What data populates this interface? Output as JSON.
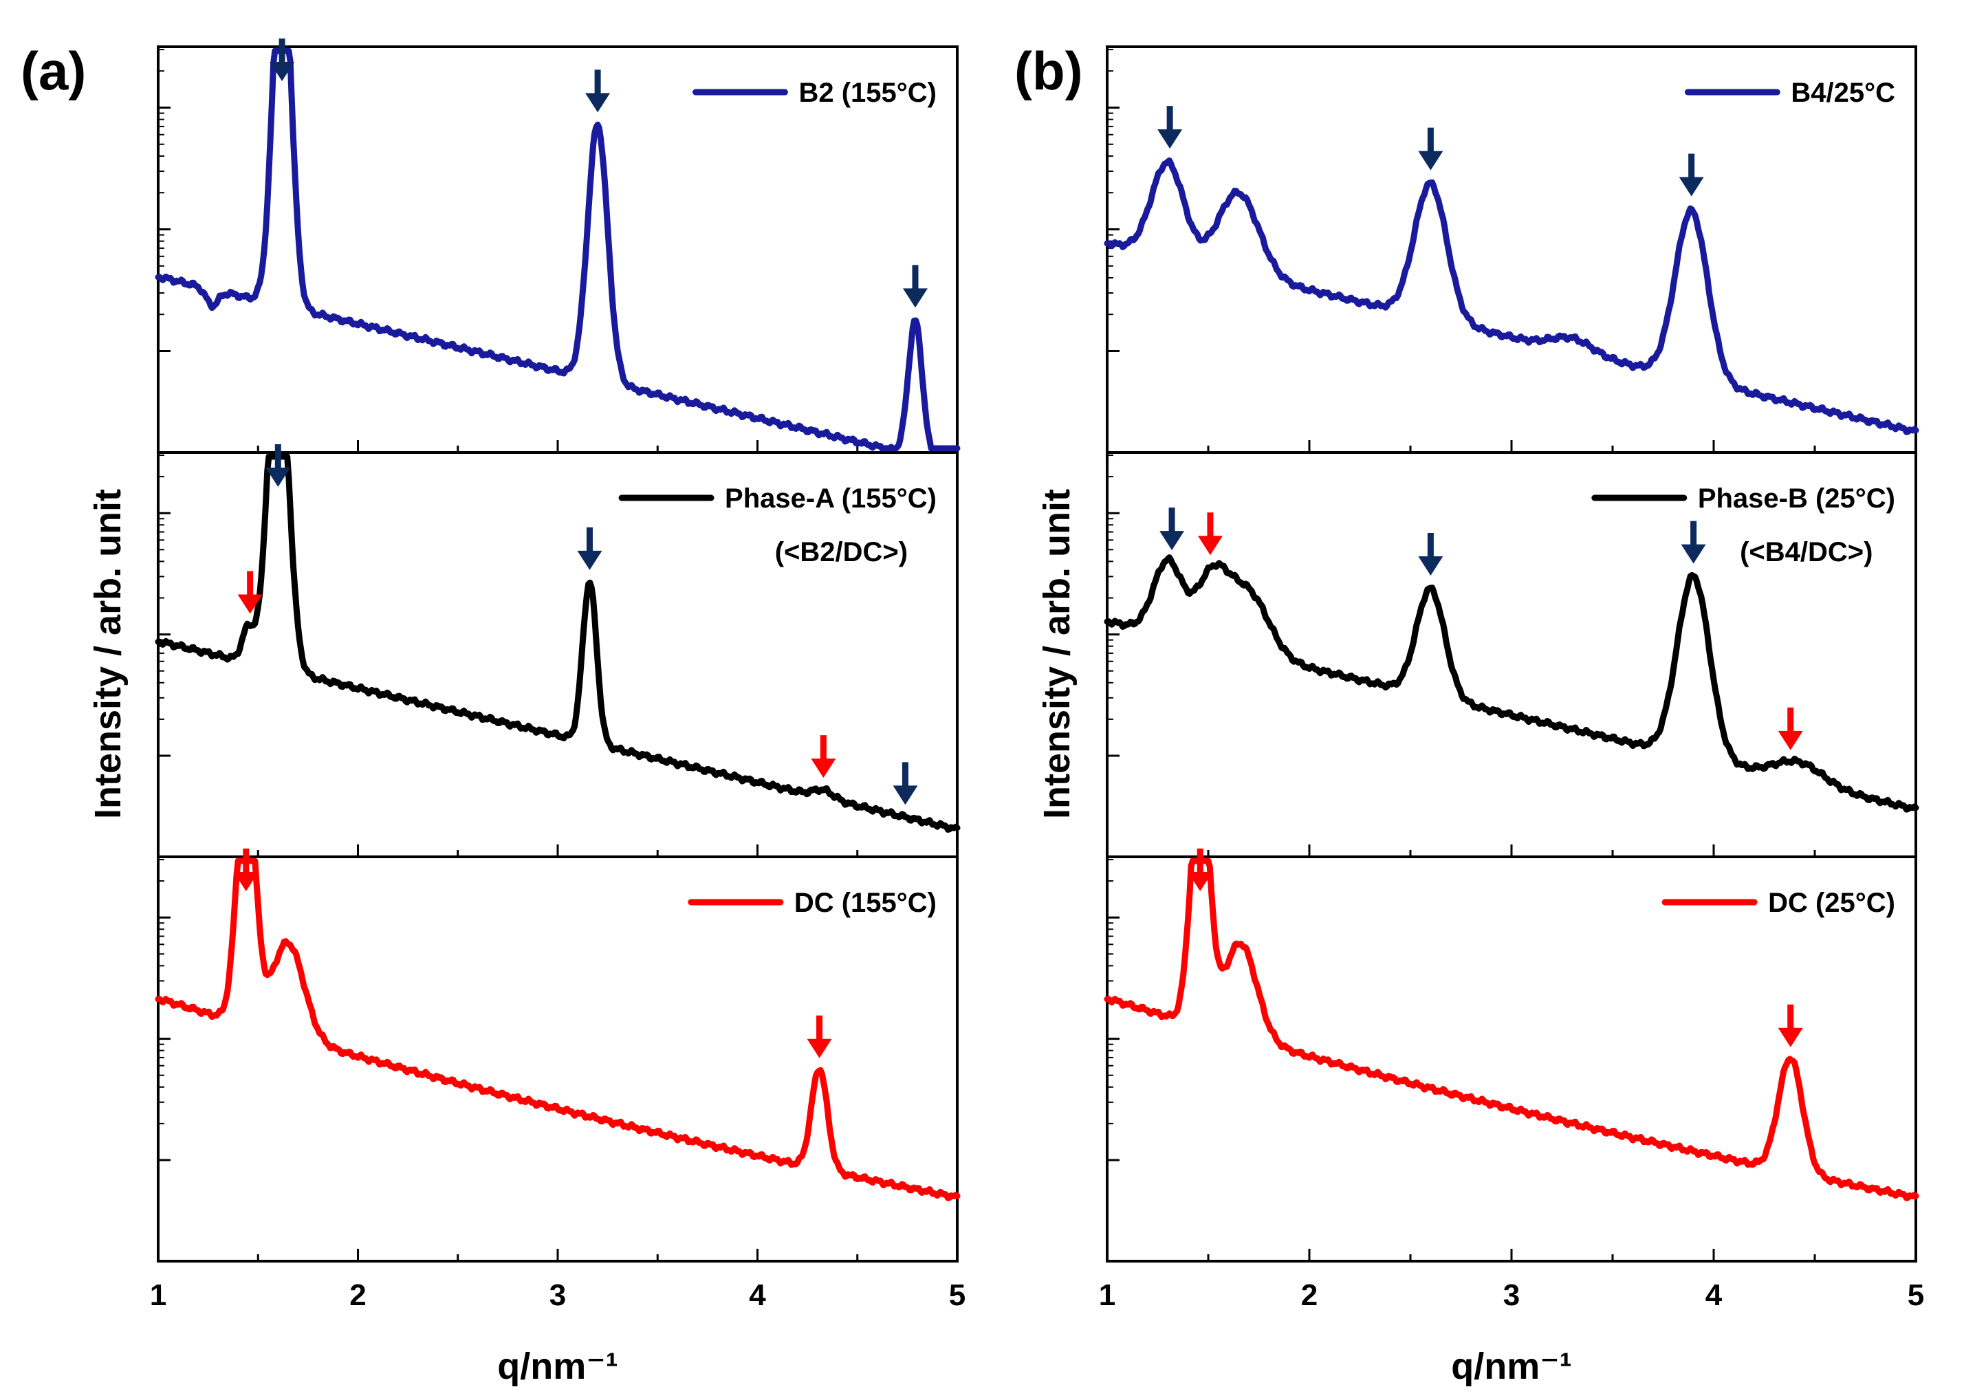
{
  "figure": {
    "x_axis_label": "q/nm⁻¹",
    "y_axis_label": "Intensity / arb. unit",
    "x_ticks": [
      "1",
      "2",
      "3",
      "4",
      "5"
    ]
  },
  "colors": {
    "blue": "#1a1a9c",
    "black": "#000000",
    "red": "#ff0000",
    "arrow_navy": "#0d2a5e",
    "arrow_red": "#ff0000"
  },
  "chart_data": [
    {
      "type": "line",
      "panel": "(a)",
      "title": "(a)",
      "xlabel": "q/nm⁻¹",
      "ylabel": "Intensity / arb. unit",
      "xlim": [
        1,
        5
      ],
      "y_scale": "log",
      "legend_placement": "top-right",
      "subplots": [
        {
          "name": "B2 (155°C)",
          "legend": "B2 (155°C)",
          "note": "",
          "color": "blue",
          "y": {
            "base": 0.3,
            "slope": 0.0,
            "tail": 0
          },
          "peaks": [
            [
              1.27,
              -0.12,
              0.03
            ],
            [
              1.62,
              2.8,
              0.045
            ],
            [
              3.2,
              1.9,
              0.05
            ],
            [
              4.79,
              1.0,
              0.035
            ]
          ],
          "shoulders": [],
          "ylim": [
            0,
            2.6
          ],
          "marker_arrows": [
            {
              "q": 1.62,
              "color": "arrow_navy"
            },
            {
              "q": 3.2,
              "color": "arrow_navy"
            },
            {
              "q": 4.79,
              "color": "arrow_navy"
            }
          ]
        },
        {
          "name": "Phase-A (155°C)",
          "legend": "Phase-A (155°C)",
          "note": "(<B2/DC>)",
          "color": "black",
          "peaks": [
            [
              1.45,
              0.25,
              0.03
            ],
            [
              1.6,
              2.6,
              0.05
            ],
            [
              3.16,
              1.2,
              0.035
            ],
            [
              4.33,
              0.06,
              0.05
            ]
          ],
          "shoulders": [],
          "ylim": [
            0,
            2.6
          ],
          "marker_arrows": [
            {
              "q": 1.46,
              "color": "arrow_red"
            },
            {
              "q": 1.6,
              "color": "arrow_navy"
            },
            {
              "q": 3.16,
              "color": "arrow_navy"
            },
            {
              "q": 4.33,
              "color": "arrow_red"
            },
            {
              "q": 4.74,
              "color": "arrow_navy"
            }
          ]
        },
        {
          "name": "DC (155°C)",
          "legend": "DC (155°C)",
          "note": "",
          "color": "red",
          "peaks": [
            [
              1.44,
              1.9,
              0.045
            ],
            [
              4.31,
              0.75,
              0.04
            ]
          ],
          "shoulders": [
            [
              1.65,
              0.7,
              0.08
            ]
          ],
          "ylim": [
            0,
            2.6
          ],
          "marker_arrows": [
            {
              "q": 1.44,
              "color": "arrow_red"
            },
            {
              "q": 4.31,
              "color": "arrow_red"
            }
          ]
        }
      ]
    },
    {
      "type": "line",
      "panel": "(b)",
      "title": "(b)",
      "xlabel": "q/nm⁻¹",
      "ylabel": "Intensity / arb. unit",
      "xlim": [
        1,
        5
      ],
      "y_scale": "log",
      "legend_placement": "top-right",
      "subplots": [
        {
          "name": "B4/25°C",
          "legend": "B4/25°C",
          "note": "",
          "color": "blue",
          "peaks": [
            [
              1.3,
              0.7,
              0.08
            ],
            [
              2.6,
              1.0,
              0.08
            ],
            [
              3.3,
              0.1,
              0.1
            ],
            [
              3.89,
              1.25,
              0.08
            ]
          ],
          "shoulders": [
            [
              1.65,
              0.6,
              0.1
            ]
          ],
          "ylim": [
            0,
            2.6
          ],
          "marker_arrows": [
            {
              "q": 1.31,
              "color": "arrow_navy"
            },
            {
              "q": 2.6,
              "color": "arrow_navy"
            },
            {
              "q": 3.89,
              "color": "arrow_navy"
            }
          ]
        },
        {
          "name": "Phase-B (25°C)",
          "legend": "Phase-B (25°C)",
          "note": "(<B4/DC>)",
          "color": "black",
          "peaks": [
            [
              1.3,
              0.55,
              0.07
            ],
            [
              2.6,
              0.8,
              0.07
            ],
            [
              3.9,
              1.35,
              0.08
            ],
            [
              4.42,
              0.15,
              0.12
            ]
          ],
          "shoulders": [
            [
              1.52,
              0.5,
              0.08
            ],
            [
              1.7,
              0.45,
              0.1
            ]
          ],
          "ylim": [
            0,
            2.6
          ],
          "marker_arrows": [
            {
              "q": 1.32,
              "color": "arrow_navy"
            },
            {
              "q": 1.51,
              "color": "arrow_red"
            },
            {
              "q": 2.6,
              "color": "arrow_navy"
            },
            {
              "q": 3.9,
              "color": "arrow_navy"
            },
            {
              "q": 4.38,
              "color": "arrow_red"
            }
          ]
        },
        {
          "name": "DC (25°C)",
          "legend": "DC (25°C)",
          "note": "",
          "color": "red",
          "peaks": [
            [
              1.46,
              1.9,
              0.045
            ],
            [
              4.38,
              0.85,
              0.06
            ]
          ],
          "shoulders": [
            [
              1.66,
              0.7,
              0.08
            ]
          ],
          "ylim": [
            0,
            2.6
          ],
          "marker_arrows": [
            {
              "q": 1.46,
              "color": "arrow_red"
            },
            {
              "q": 4.38,
              "color": "arrow_red"
            }
          ]
        }
      ]
    }
  ]
}
